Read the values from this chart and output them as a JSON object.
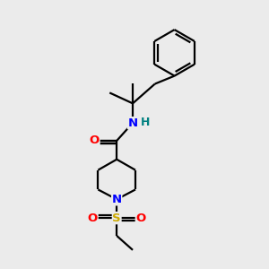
{
  "background_color": "#ebebeb",
  "bond_color": "#000000",
  "atom_colors": {
    "N": "#0000ff",
    "O": "#ff0000",
    "S": "#ccaa00",
    "H": "#008080",
    "C": "#000000"
  },
  "figsize": [
    3.0,
    3.0
  ],
  "dpi": 100,
  "lw": 1.6,
  "fontsize": 9.5
}
